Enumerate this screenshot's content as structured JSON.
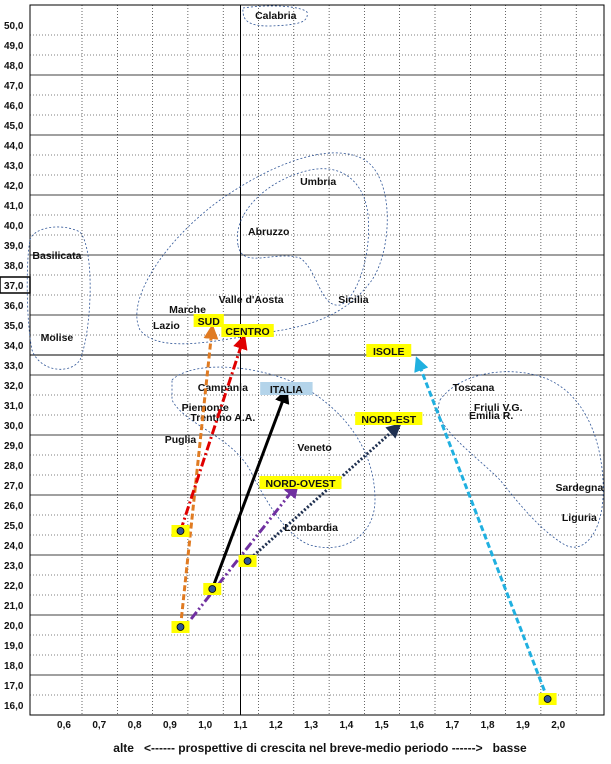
{
  "chart_data": {
    "type": "scatter",
    "title": "",
    "xlabel": "alte   <------ prospettive di crescita nel breve-medio periodo ------>   basse",
    "ylabel": "",
    "xlim": [
      0.5,
      2.1
    ],
    "ylim": [
      15.5,
      51.0
    ],
    "x_ticks": [
      "0,6",
      "0,7",
      "0,8",
      "0,9",
      "1,0",
      "1,1",
      "1,2",
      "1,3",
      "1,4",
      "1,5",
      "1,6",
      "1,7",
      "1,8",
      "1,9",
      "2,0"
    ],
    "y_ticks": [
      "16,0",
      "17,0",
      "18,0",
      "19,0",
      "20,0",
      "21,0",
      "22,0",
      "23,0",
      "24,0",
      "25,0",
      "26,0",
      "27,0",
      "28,0",
      "29,0",
      "30,0",
      "31,0",
      "32,0",
      "33,0",
      "34,0",
      "35,0",
      "36,0",
      "37,0",
      "38,0",
      "39,0",
      "40,0",
      "41,0",
      "42,0",
      "43,0",
      "44,0",
      "45,0",
      "46,0",
      "47,0",
      "48,0",
      "49,0",
      "50,0"
    ],
    "highlighted_y_tick": "37,0",
    "reference_lines": {
      "x": 1.1,
      "y": 33.5
    },
    "grid": "dashed minor, solid every 3 units",
    "regions": [
      {
        "label": "Calabria",
        "x": 1.2,
        "y": 50.5
      },
      {
        "label": "Umbria",
        "x": 1.32,
        "y": 42.2
      },
      {
        "label": "Abruzzo",
        "x": 1.18,
        "y": 39.7
      },
      {
        "label": "Basilicata",
        "x": 0.58,
        "y": 38.5
      },
      {
        "label": "Valle d'Aosta",
        "x": 1.13,
        "y": 36.3
      },
      {
        "label": "Sicilia",
        "x": 1.42,
        "y": 36.3
      },
      {
        "label": "Marche",
        "x": 0.95,
        "y": 35.8
      },
      {
        "label": "Lazio",
        "x": 0.89,
        "y": 35.0
      },
      {
        "label": "Molise",
        "x": 0.58,
        "y": 34.4
      },
      {
        "label": "Campania",
        "x": 1.05,
        "y": 31.9
      },
      {
        "label": "Piemonte",
        "x": 1.0,
        "y": 30.9
      },
      {
        "label": "Trentino A.A.",
        "x": 1.05,
        "y": 30.4
      },
      {
        "label": "Puglia",
        "x": 0.93,
        "y": 29.3
      },
      {
        "label": "Veneto",
        "x": 1.31,
        "y": 28.9
      },
      {
        "label": "Lombardia",
        "x": 1.3,
        "y": 24.9
      },
      {
        "label": "Toscana",
        "x": 1.76,
        "y": 31.9
      },
      {
        "label": "Friuli V.G.",
        "x": 1.83,
        "y": 30.9
      },
      {
        "label": "Emilia R.",
        "x": 1.81,
        "y": 30.5
      },
      {
        "label": "Sardegna",
        "x": 2.06,
        "y": 26.9
      },
      {
        "label": "Liguria",
        "x": 2.06,
        "y": 25.4
      }
    ],
    "groups": [
      {
        "label": "SUD",
        "from": [
          0.93,
          19.9
        ],
        "to": [
          1.02,
          34.9
        ],
        "color": "#e07b22",
        "dash": "dashed"
      },
      {
        "label": "CENTRO",
        "from": [
          0.93,
          24.7
        ],
        "to": [
          1.11,
          34.4
        ],
        "color": "#e00000",
        "dash": "dash-dot"
      },
      {
        "label": "ITALIA",
        "from": [
          1.02,
          21.8
        ],
        "to": [
          1.23,
          31.7
        ],
        "color": "#000000",
        "dash": "solid"
      },
      {
        "label": "NORD-OVEST",
        "from": [
          0.96,
          20.3
        ],
        "to": [
          1.26,
          27.0
        ],
        "color": "#7030a0",
        "dash": "dash-dot-dot"
      },
      {
        "label": "NORD-EST",
        "from": [
          1.12,
          23.2
        ],
        "to": [
          1.55,
          30.0
        ],
        "color": "#1f3050",
        "dash": "dotted"
      },
      {
        "label": "ISOLE",
        "from": [
          1.97,
          16.3
        ],
        "to": [
          1.6,
          33.3
        ],
        "color": "#20b0e0",
        "dash": "dashed"
      }
    ],
    "group_labels": [
      {
        "label": "SUD",
        "x": 1.01,
        "y": 35.2,
        "bg": "#ffff00"
      },
      {
        "label": "CENTRO",
        "x": 1.12,
        "y": 34.7,
        "bg": "#ffff00"
      },
      {
        "label": "ISOLE",
        "x": 1.52,
        "y": 33.7,
        "bg": "#ffff00"
      },
      {
        "label": "ITALIA",
        "x": 1.23,
        "y": 31.8,
        "bg": "#b4d4ea"
      },
      {
        "label": "NORD-EST",
        "x": 1.52,
        "y": 30.3,
        "bg": "#ffff00"
      },
      {
        "label": "NORD-OVEST",
        "x": 1.27,
        "y": 27.1,
        "bg": "#ffff00"
      }
    ],
    "start_markers": [
      {
        "x": 0.93,
        "y": 19.9
      },
      {
        "x": 0.93,
        "y": 24.7
      },
      {
        "x": 1.02,
        "y": 21.8
      },
      {
        "x": 1.12,
        "y": 23.2
      },
      {
        "x": 1.97,
        "y": 16.3
      }
    ]
  }
}
